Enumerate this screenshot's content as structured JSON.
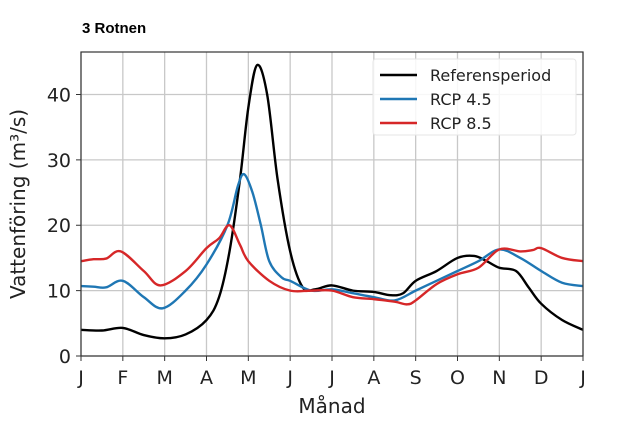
{
  "chart_data": {
    "type": "line",
    "title": "3 Rotnen",
    "xlabel": "Månad",
    "ylabel": "Vattenföring (m³/s)",
    "xlim": [
      0,
      12
    ],
    "ylim": [
      0,
      46.5
    ],
    "grid": true,
    "legend_position": "top-right",
    "x_ticks": [
      "J",
      "F",
      "M",
      "A",
      "M",
      "J",
      "J",
      "A",
      "S",
      "O",
      "N",
      "D",
      "J"
    ],
    "y_ticks": [
      0,
      10,
      20,
      30,
      40
    ],
    "series": [
      {
        "name": "Referensperiod",
        "color": "#000000",
        "x": [
          0,
          0.5,
          1,
          1.5,
          2,
          2.5,
          3,
          3.3,
          3.55,
          3.8,
          4.0,
          4.21,
          4.45,
          4.7,
          5,
          5.3,
          5.6,
          6,
          6.5,
          7,
          7.4,
          7.7,
          8,
          8.5,
          9,
          9.4,
          9.7,
          10,
          10.4,
          10.7,
          11,
          11.5,
          12
        ],
        "y": [
          4.0,
          3.9,
          4.3,
          3.2,
          2.7,
          3.3,
          5.5,
          9,
          16,
          27,
          38,
          44.5,
          40,
          27,
          16,
          10.5,
          10.2,
          10.8,
          10,
          9.8,
          9.3,
          9.6,
          11.5,
          13,
          15,
          15.3,
          14.5,
          13.5,
          13,
          10.5,
          8,
          5.5,
          4.0
        ]
      },
      {
        "name": "RCP 4.5",
        "color": "#1f77b4",
        "x": [
          0,
          0.3,
          0.6,
          1,
          1.5,
          1.95,
          2.5,
          3,
          3.5,
          3.75,
          3.9,
          4.1,
          4.3,
          4.5,
          4.8,
          5,
          5.5,
          6,
          6.5,
          7,
          7.5,
          8,
          8.5,
          9,
          9.5,
          10,
          10.5,
          11,
          11.5,
          12
        ],
        "y": [
          10.7,
          10.6,
          10.5,
          11.5,
          9,
          7.3,
          10,
          14,
          20,
          26,
          27.8,
          25,
          20,
          14.5,
          12,
          11.5,
          10,
          10.2,
          9.6,
          9,
          8.5,
          10,
          11.5,
          13,
          14.5,
          16.3,
          15,
          13,
          11.2,
          10.7
        ]
      },
      {
        "name": "RCP 8.5",
        "color": "#d62728",
        "x": [
          0,
          0.3,
          0.6,
          0.95,
          1.5,
          1.9,
          2.5,
          3,
          3.3,
          3.55,
          3.8,
          4,
          4.5,
          5,
          5.5,
          6,
          6.5,
          7,
          7.5,
          7.8,
          8,
          8.5,
          9,
          9.5,
          10,
          10.5,
          10.8,
          11,
          11.5,
          12
        ],
        "y": [
          14.5,
          14.8,
          14.9,
          16,
          13,
          10.8,
          13,
          16.5,
          18,
          20,
          17,
          14.5,
          11.5,
          10,
          10,
          10,
          9,
          8.7,
          8.3,
          7.9,
          8.5,
          11,
          12.5,
          13.5,
          16.3,
          16,
          16.2,
          16.5,
          15,
          14.5
        ]
      }
    ]
  }
}
